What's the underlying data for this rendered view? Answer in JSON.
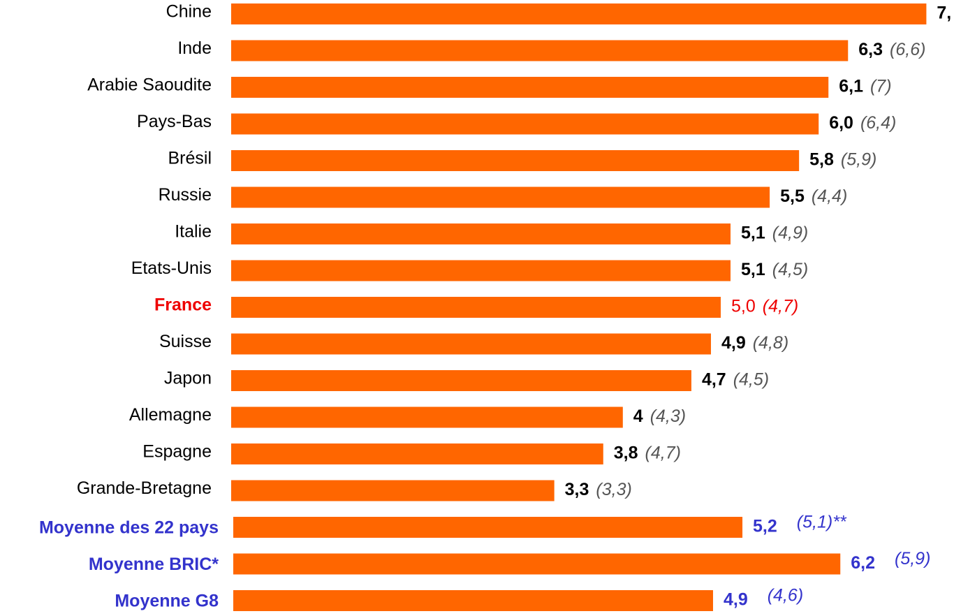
{
  "chart_data": {
    "type": "bar",
    "orientation": "horizontal",
    "color": "#ff6600",
    "categories": [
      "Chine",
      "Inde",
      "Arabie Saoudite",
      "Pays-Bas",
      "Brésil",
      "Russie",
      "Italie",
      "Etats-Unis",
      "France",
      "Suisse",
      "Japon",
      "Allemagne",
      "Espagne",
      "Grande-Bretagne",
      "Moyenne des 22 pays",
      "Moyenne BRIC*",
      "Moyenne G8"
    ],
    "values": [
      7.1,
      6.3,
      6.1,
      6.0,
      5.8,
      5.5,
      5.1,
      5.1,
      5.0,
      4.9,
      4.7,
      4,
      3.8,
      3.3,
      5.2,
      6.2,
      4.9
    ],
    "value_labels": [
      "7,",
      "6,3",
      "6,1",
      "6,0",
      "5,8",
      "5,5",
      "5,1",
      "5,1",
      "5,0",
      "4,9",
      "4,7",
      "4",
      "3,8",
      "3,3",
      "5,2",
      "6,2",
      "4,9"
    ],
    "previous_labels": [
      null,
      "(6,6)",
      "(7)",
      "(6,4)",
      "(5,9)",
      "(4,4)",
      "(4,9)",
      "(4,5)",
      "(4,7)",
      "(4,8)",
      "(4,5)",
      "(4,3)",
      "(4,7)",
      "(3,3)",
      "(5,1)**",
      "(5,9)",
      "(4,6)"
    ],
    "label_colors": [
      "#000000",
      "#000000",
      "#000000",
      "#000000",
      "#000000",
      "#000000",
      "#000000",
      "#000000",
      "#ee0000",
      "#000000",
      "#000000",
      "#000000",
      "#000000",
      "#000000",
      "#3333cc",
      "#3333cc",
      "#3333cc"
    ]
  }
}
